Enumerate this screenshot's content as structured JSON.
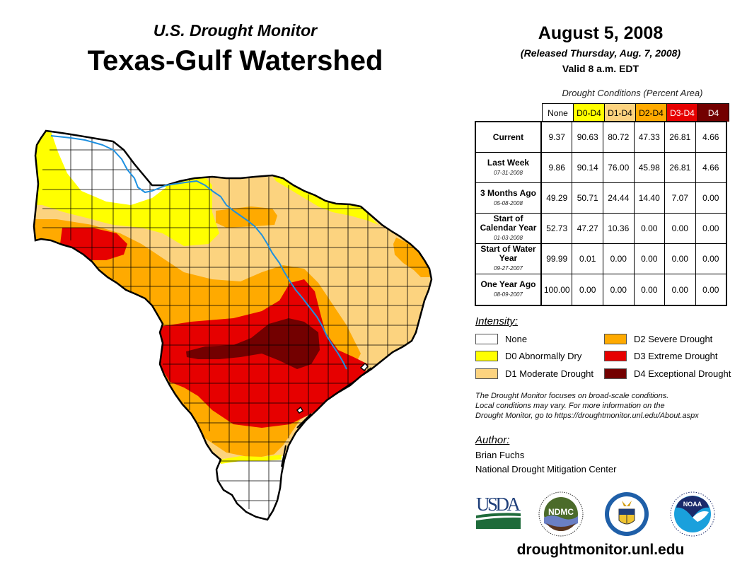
{
  "header": {
    "subtitle": "U.S. Drought Monitor",
    "title": "Texas-Gulf Watershed",
    "date": "August 5, 2008",
    "released": "(Released Thursday, Aug. 7, 2008)",
    "valid": "Valid 8 a.m. EDT"
  },
  "table": {
    "caption": "Drought Conditions (Percent Area)",
    "columns": [
      {
        "label": "None",
        "color": "#ffffff",
        "text_color": "#000000"
      },
      {
        "label": "D0-D4",
        "color": "#ffff00",
        "text_color": "#000000"
      },
      {
        "label": "D1-D4",
        "color": "#fcd37f",
        "text_color": "#000000"
      },
      {
        "label": "D2-D4",
        "color": "#ffaa00",
        "text_color": "#000000"
      },
      {
        "label": "D3-D4",
        "color": "#e60000",
        "text_color": "#ffffff"
      },
      {
        "label": "D4",
        "color": "#730000",
        "text_color": "#ffffff"
      }
    ],
    "rows": [
      {
        "name": "Current",
        "date": "",
        "values": [
          "9.37",
          "90.63",
          "80.72",
          "47.33",
          "26.81",
          "4.66"
        ]
      },
      {
        "name": "Last Week",
        "date": "07-31-2008",
        "values": [
          "9.86",
          "90.14",
          "76.00",
          "45.98",
          "26.81",
          "4.66"
        ]
      },
      {
        "name": "3 Months Ago",
        "date": "05-08-2008",
        "values": [
          "49.29",
          "50.71",
          "24.44",
          "14.40",
          "7.07",
          "0.00"
        ]
      },
      {
        "name": "Start of Calendar Year",
        "date": "01-03-2008",
        "values": [
          "52.73",
          "47.27",
          "10.36",
          "0.00",
          "0.00",
          "0.00"
        ]
      },
      {
        "name": "Start of Water Year",
        "date": "09-27-2007",
        "values": [
          "99.99",
          "0.01",
          "0.00",
          "0.00",
          "0.00",
          "0.00"
        ]
      },
      {
        "name": "One Year Ago",
        "date": "08-09-2007",
        "values": [
          "100.00",
          "0.00",
          "0.00",
          "0.00",
          "0.00",
          "0.00"
        ]
      }
    ]
  },
  "legend": {
    "title": "Intensity:",
    "items": [
      {
        "label": "None",
        "color": "#ffffff"
      },
      {
        "label": "D0 Abnormally Dry",
        "color": "#ffff00"
      },
      {
        "label": "D1 Moderate Drought",
        "color": "#fcd37f"
      },
      {
        "label": "D2 Severe Drought",
        "color": "#ffaa00"
      },
      {
        "label": "D3 Extreme Drought",
        "color": "#e60000"
      },
      {
        "label": "D4 Exceptional Drought",
        "color": "#730000"
      }
    ]
  },
  "disclaimer": {
    "line1": "The Drought Monitor focuses on broad-scale conditions.",
    "line2": "Local conditions may vary. For more information on the",
    "line3": "Drought Monitor, go to https://droughtmonitor.unl.edu/About.aspx"
  },
  "author": {
    "title": "Author:",
    "name": "Brian Fuchs",
    "org": "National Drought Mitigation Center"
  },
  "logos": {
    "usda": "USDA",
    "ndmc": "NDMC",
    "noaa": "NOAA",
    "colors": {
      "usda_blue": "#1f3f7a",
      "usda_green": "#1e6b3a",
      "ndmc_green": "#4b6b2a",
      "noaa_blue": "#1aa0dc",
      "noaa_navy": "#1b2a6b",
      "doc_blue": "#1f5fa8",
      "doc_gold": "#f0c430"
    }
  },
  "footer": {
    "url": "droughtmonitor.unl.edu"
  },
  "map": {
    "river_color": "#1e90e0",
    "border_color": "#000000"
  }
}
